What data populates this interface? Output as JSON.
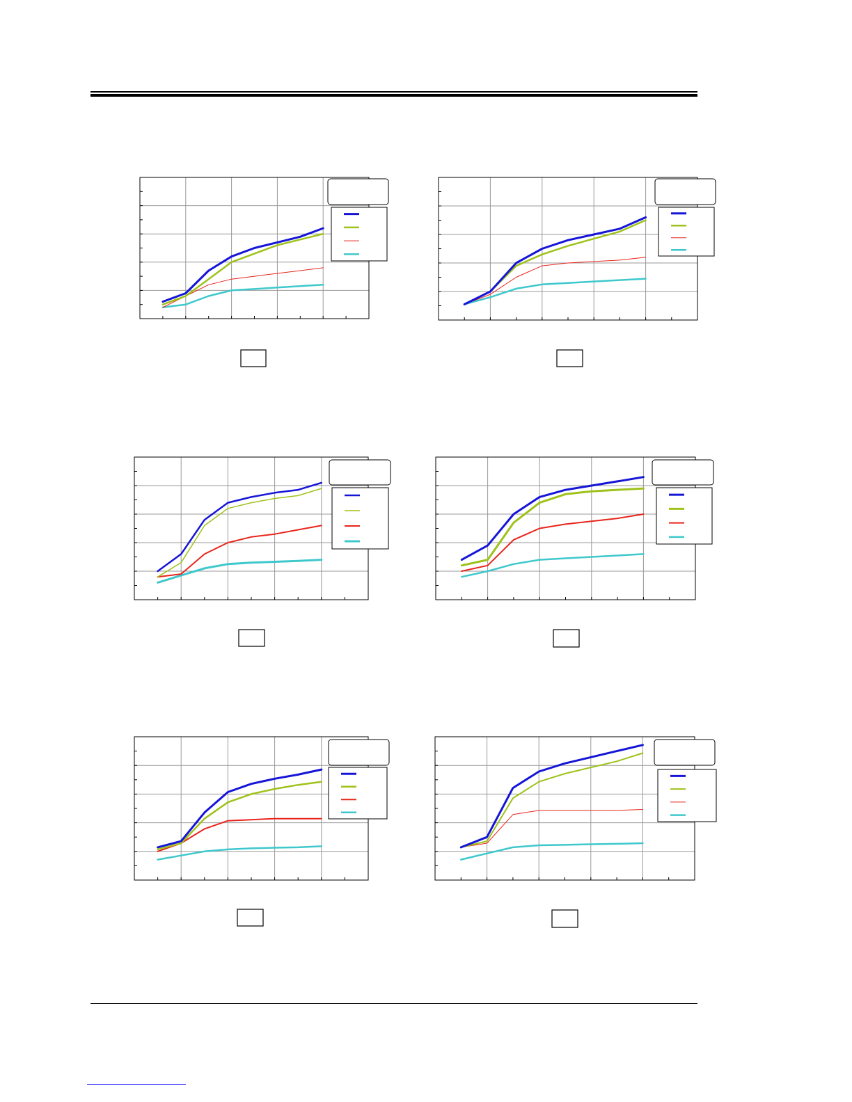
{
  "colors": {
    "blue": "#1515d8",
    "green": "#9ec21a",
    "red": "#e8241c",
    "cyan": "#3ec8cc",
    "grid": "#999999",
    "frame": "#000000"
  },
  "chart_data": [
    {
      "type": "line",
      "xlim": [
        0,
        5
      ],
      "ylim": [
        0,
        5
      ],
      "grid": true,
      "legend": "top-right",
      "series": [
        {
          "x": [
            0.5,
            1,
            1.5,
            2,
            2.5,
            3,
            3.5,
            4
          ],
          "values": [
            0.6,
            0.9,
            1.7,
            2.2,
            2.5,
            2.7,
            2.9,
            3.2
          ],
          "color": "blue"
        },
        {
          "x": [
            0.5,
            1,
            1.5,
            2,
            2.5,
            3,
            3.5,
            4
          ],
          "values": [
            0.5,
            0.8,
            1.4,
            2.0,
            2.3,
            2.6,
            2.8,
            3.0
          ],
          "color": "green"
        },
        {
          "x": [
            0.5,
            1,
            1.5,
            2,
            2.5,
            3,
            3.5,
            4
          ],
          "values": [
            0.4,
            0.8,
            1.2,
            1.4,
            1.5,
            1.6,
            1.7,
            1.8
          ],
          "color": "red"
        },
        {
          "x": [
            0.5,
            1,
            1.5,
            2,
            2.5,
            3,
            3.5,
            4
          ],
          "values": [
            0.4,
            0.5,
            0.8,
            1.0,
            1.05,
            1.1,
            1.15,
            1.2
          ],
          "color": "cyan"
        }
      ]
    },
    {
      "type": "line",
      "xlim": [
        0,
        5
      ],
      "ylim": [
        0,
        5
      ],
      "grid": true,
      "legend": "top-right",
      "series": [
        {
          "x": [
            0.5,
            1,
            1.5,
            2,
            2.5,
            3,
            3.5,
            4
          ],
          "values": [
            0.55,
            1.0,
            2.0,
            2.5,
            2.8,
            3.0,
            3.2,
            3.6
          ],
          "color": "blue"
        },
        {
          "x": [
            0.5,
            1,
            1.5,
            2,
            2.5,
            3,
            3.5,
            4
          ],
          "values": [
            0.55,
            1.0,
            1.9,
            2.3,
            2.6,
            2.85,
            3.1,
            3.5
          ],
          "color": "green"
        },
        {
          "x": [
            0.5,
            1,
            1.5,
            2,
            2.5,
            3,
            3.5,
            4
          ],
          "values": [
            0.55,
            0.9,
            1.5,
            1.9,
            2.0,
            2.05,
            2.1,
            2.2
          ],
          "color": "red"
        },
        {
          "x": [
            0.5,
            1,
            1.5,
            2,
            2.5,
            3,
            3.5,
            4
          ],
          "values": [
            0.55,
            0.8,
            1.1,
            1.25,
            1.3,
            1.35,
            1.4,
            1.45
          ],
          "color": "cyan"
        }
      ]
    },
    {
      "type": "line",
      "xlim": [
        0,
        5
      ],
      "ylim": [
        0,
        5
      ],
      "grid": true,
      "legend": "top-right",
      "series": [
        {
          "x": [
            0.5,
            1,
            1.5,
            2,
            2.5,
            3,
            3.5,
            4
          ],
          "values": [
            1.0,
            1.6,
            2.8,
            3.4,
            3.6,
            3.75,
            3.85,
            4.1
          ],
          "color": "blue"
        },
        {
          "x": [
            0.5,
            1,
            1.5,
            2,
            2.5,
            3,
            3.5,
            4
          ],
          "values": [
            0.8,
            1.3,
            2.6,
            3.2,
            3.4,
            3.55,
            3.65,
            3.9
          ],
          "color": "green"
        },
        {
          "x": [
            0.5,
            1,
            1.5,
            2,
            2.5,
            3,
            3.5,
            4
          ],
          "values": [
            0.8,
            0.9,
            1.6,
            2.0,
            2.2,
            2.3,
            2.45,
            2.6
          ],
          "color": "red"
        },
        {
          "x": [
            0.5,
            1,
            1.5,
            2,
            2.5,
            3,
            3.5,
            4
          ],
          "values": [
            0.6,
            0.85,
            1.1,
            1.25,
            1.3,
            1.33,
            1.36,
            1.4
          ],
          "color": "cyan"
        }
      ]
    },
    {
      "type": "line",
      "xlim": [
        0,
        5
      ],
      "ylim": [
        0,
        5
      ],
      "grid": true,
      "legend": "top-right",
      "series": [
        {
          "x": [
            0.5,
            1,
            1.5,
            2,
            2.5,
            3,
            3.5,
            4
          ],
          "values": [
            1.4,
            1.9,
            3.0,
            3.6,
            3.85,
            4.0,
            4.15,
            4.3
          ],
          "color": "blue"
        },
        {
          "x": [
            0.5,
            1,
            1.5,
            2,
            2.5,
            3,
            3.5,
            4
          ],
          "values": [
            1.2,
            1.4,
            2.7,
            3.4,
            3.7,
            3.8,
            3.85,
            3.9
          ],
          "color": "green"
        },
        {
          "x": [
            0.5,
            1,
            1.5,
            2,
            2.5,
            3,
            3.5,
            4
          ],
          "values": [
            1.0,
            1.2,
            2.1,
            2.5,
            2.65,
            2.75,
            2.85,
            3.0
          ],
          "color": "red"
        },
        {
          "x": [
            0.5,
            1,
            1.5,
            2,
            2.5,
            3,
            3.5,
            4
          ],
          "values": [
            0.8,
            1.0,
            1.25,
            1.4,
            1.45,
            1.5,
            1.55,
            1.6
          ],
          "color": "cyan"
        }
      ]
    },
    {
      "type": "line",
      "xlim": [
        0,
        5
      ],
      "ylim": [
        0,
        7
      ],
      "grid": true,
      "legend": "top-right",
      "series": [
        {
          "x": [
            0.5,
            1,
            1.5,
            2,
            2.5,
            3,
            3.5,
            4
          ],
          "values": [
            1.6,
            1.9,
            3.3,
            4.3,
            4.7,
            4.95,
            5.15,
            5.4
          ],
          "color": "blue"
        },
        {
          "x": [
            0.5,
            1,
            1.5,
            2,
            2.5,
            3,
            3.5,
            4
          ],
          "values": [
            1.5,
            1.8,
            3.0,
            3.8,
            4.2,
            4.45,
            4.65,
            4.8
          ],
          "color": "green"
        },
        {
          "x": [
            0.5,
            1,
            1.5,
            2,
            2.5,
            3,
            3.5,
            4
          ],
          "values": [
            1.4,
            1.8,
            2.5,
            2.9,
            2.95,
            3.0,
            3.0,
            3.0
          ],
          "color": "red"
        },
        {
          "x": [
            0.5,
            1,
            1.5,
            2,
            2.5,
            3,
            3.5,
            4
          ],
          "values": [
            1.0,
            1.2,
            1.4,
            1.5,
            1.55,
            1.58,
            1.6,
            1.65
          ],
          "color": "cyan"
        }
      ]
    },
    {
      "type": "line",
      "xlim": [
        0,
        5
      ],
      "ylim": [
        0,
        7
      ],
      "grid": true,
      "legend": "top-right",
      "series": [
        {
          "x": [
            0.5,
            1,
            1.5,
            2,
            2.5,
            3,
            3.5,
            4
          ],
          "values": [
            1.6,
            2.1,
            4.5,
            5.3,
            5.7,
            6.0,
            6.3,
            6.6
          ],
          "color": "blue"
        },
        {
          "x": [
            0.5,
            1,
            1.5,
            2,
            2.5,
            3,
            3.5,
            4
          ],
          "values": [
            1.6,
            1.9,
            4.0,
            4.8,
            5.2,
            5.5,
            5.8,
            6.2
          ],
          "color": "green"
        },
        {
          "x": [
            0.5,
            1,
            1.5,
            2,
            2.5,
            3,
            3.5,
            4
          ],
          "values": [
            1.6,
            1.8,
            3.2,
            3.4,
            3.4,
            3.4,
            3.4,
            3.45
          ],
          "color": "red"
        },
        {
          "x": [
            0.5,
            1,
            1.5,
            2,
            2.5,
            3,
            3.5,
            4
          ],
          "values": [
            1.0,
            1.3,
            1.6,
            1.7,
            1.72,
            1.75,
            1.77,
            1.8
          ],
          "color": "cyan"
        }
      ]
    }
  ]
}
